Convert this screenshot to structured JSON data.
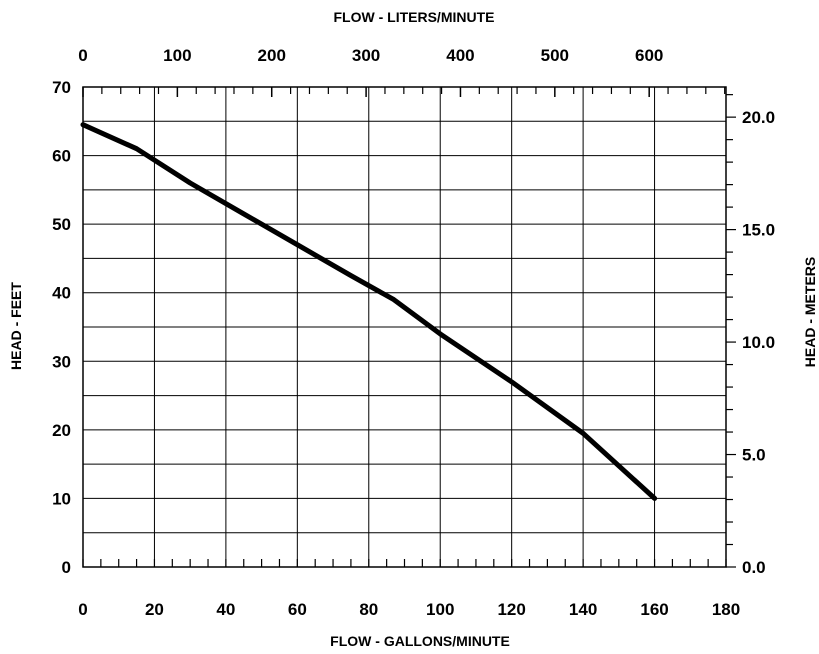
{
  "chart_data": {
    "type": "line",
    "x_bottom": {
      "label": "FLOW - GALLONS/MINUTE",
      "range": [
        0,
        180
      ],
      "ticks": [
        0,
        20,
        40,
        60,
        80,
        100,
        120,
        140,
        160,
        180
      ],
      "tick_labels": [
        "0",
        "20",
        "40",
        "60",
        "80",
        "100",
        "120",
        "140",
        "160",
        "180"
      ]
    },
    "x_top": {
      "label": "FLOW - LITERS/MINUTE",
      "range": [
        0,
        681.4
      ],
      "ticks": [
        0,
        100,
        200,
        300,
        400,
        500,
        600
      ],
      "tick_labels": [
        "0",
        "100",
        "200",
        "300",
        "400",
        "500",
        "600"
      ]
    },
    "y_left": {
      "label": "HEAD - FEET",
      "range": [
        0,
        70
      ],
      "ticks": [
        0,
        10,
        20,
        30,
        40,
        50,
        60,
        70
      ],
      "tick_labels": [
        "0",
        "10",
        "20",
        "30",
        "40",
        "50",
        "60",
        "70"
      ]
    },
    "y_right": {
      "label": "HEAD - METERS",
      "range": [
        0,
        21.34
      ],
      "ticks": [
        0,
        5,
        10,
        15,
        20
      ],
      "tick_labels": [
        "0.0",
        "5.0",
        "10.0",
        "15.0",
        "20.0"
      ]
    },
    "grid": true,
    "series": [
      {
        "x": [
          0,
          15,
          30,
          45,
          60,
          75,
          87,
          100,
          120,
          140,
          160
        ],
        "y": [
          64.5,
          61,
          56,
          51.5,
          47,
          42.5,
          39,
          34,
          27,
          19.5,
          10
        ]
      }
    ]
  }
}
